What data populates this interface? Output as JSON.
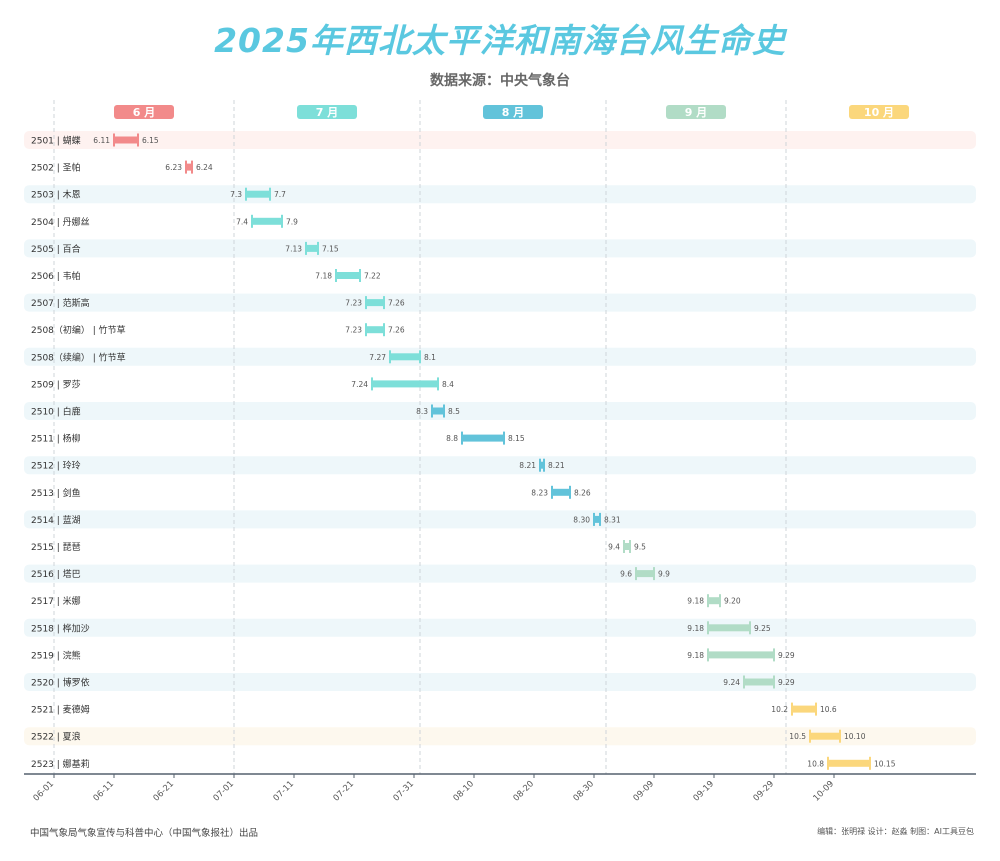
{
  "title": "2025年西北太平洋和南海台风生命史",
  "subtitle": "数据来源：中央气象台",
  "footer": {
    "left": "中国气象局气象宣传与科普中心（中国气象报社）出品",
    "right": "编辑：张明禄   设计：赵淼     制图：AI工具豆包"
  },
  "colors": {
    "6": "#f28a8a",
    "7": "#7ddfd9",
    "8": "#62c3da",
    "9": "#b1dcc6",
    "10": "#fbd77c",
    "axis": "#55606e",
    "grid": "#cfd4d9"
  },
  "chart_data": {
    "type": "timeline-range",
    "months": [
      {
        "label": "6 月",
        "color_key": "6"
      },
      {
        "label": "7 月",
        "color_key": "7"
      },
      {
        "label": "8 月",
        "color_key": "8"
      },
      {
        "label": "9 月",
        "color_key": "9"
      },
      {
        "label": "10 月",
        "color_key": "10"
      }
    ],
    "x_ticks": [
      "06-01",
      "06-11",
      "06-21",
      "07-01",
      "07-11",
      "07-21",
      "07-31",
      "08-10",
      "08-20",
      "08-30",
      "09-09",
      "09-19",
      "09-29",
      "10-09"
    ],
    "x_range": [
      "2025-06-01",
      "2025-10-31"
    ],
    "typhoons": [
      {
        "label": "2501 | 蝴蝶",
        "start_label": "6.11",
        "end_label": "6.15",
        "start": "2025-06-11",
        "end": "2025-06-15",
        "month": "6"
      },
      {
        "label": "2502 | 圣帕",
        "start_label": "6.23",
        "end_label": "6.24",
        "start": "2025-06-23",
        "end": "2025-06-24",
        "month": "6"
      },
      {
        "label": "2503 | 木恩",
        "start_label": "7.3",
        "end_label": "7.7",
        "start": "2025-07-03",
        "end": "2025-07-07",
        "month": "7"
      },
      {
        "label": "2504 | 丹娜丝",
        "start_label": "7.4",
        "end_label": "7.9",
        "start": "2025-07-04",
        "end": "2025-07-09",
        "month": "7"
      },
      {
        "label": "2505 | 百合",
        "start_label": "7.13",
        "end_label": "7.15",
        "start": "2025-07-13",
        "end": "2025-07-15",
        "month": "7"
      },
      {
        "label": "2506 | 韦帕",
        "start_label": "7.18",
        "end_label": "7.22",
        "start": "2025-07-18",
        "end": "2025-07-22",
        "month": "7"
      },
      {
        "label": "2507 | 范斯高",
        "start_label": "7.23",
        "end_label": "7.26",
        "start": "2025-07-23",
        "end": "2025-07-26",
        "month": "7"
      },
      {
        "label": "2508（初编） | 竹节草",
        "start_label": "7.23",
        "end_label": "7.26",
        "start": "2025-07-23",
        "end": "2025-07-26",
        "month": "7"
      },
      {
        "label": "2508（续编） | 竹节草",
        "start_label": "7.27",
        "end_label": "8.1",
        "start": "2025-07-27",
        "end": "2025-08-01",
        "month": "7"
      },
      {
        "label": "2509 | 罗莎",
        "start_label": "7.24",
        "end_label": "8.4",
        "start": "2025-07-24",
        "end": "2025-08-04",
        "month": "7"
      },
      {
        "label": "2510 | 白鹿",
        "start_label": "8.3",
        "end_label": "8.5",
        "start": "2025-08-03",
        "end": "2025-08-05",
        "month": "8"
      },
      {
        "label": "2511 | 杨柳",
        "start_label": "8.8",
        "end_label": "8.15",
        "start": "2025-08-08",
        "end": "2025-08-15",
        "month": "8"
      },
      {
        "label": "2512 | 玲玲",
        "start_label": "8.21",
        "end_label": "8.21",
        "start": "2025-08-21",
        "end": "2025-08-21",
        "month": "8"
      },
      {
        "label": "2513 | 剑鱼",
        "start_label": "8.23",
        "end_label": "8.26",
        "start": "2025-08-23",
        "end": "2025-08-26",
        "month": "8"
      },
      {
        "label": "2514 | 蓝湖",
        "start_label": "8.30",
        "end_label": "8.31",
        "start": "2025-08-30",
        "end": "2025-08-31",
        "month": "8"
      },
      {
        "label": "2515 | 琵琶",
        "start_label": "9.4",
        "end_label": "9.5",
        "start": "2025-09-04",
        "end": "2025-09-05",
        "month": "9"
      },
      {
        "label": "2516 | 塔巴",
        "start_label": "9.6",
        "end_label": "9.9",
        "start": "2025-09-06",
        "end": "2025-09-09",
        "month": "9"
      },
      {
        "label": "2517 | 米娜",
        "start_label": "9.18",
        "end_label": "9.20",
        "start": "2025-09-18",
        "end": "2025-09-20",
        "month": "9"
      },
      {
        "label": "2518 | 桦加沙",
        "start_label": "9.18",
        "end_label": "9.25",
        "start": "2025-09-18",
        "end": "2025-09-25",
        "month": "9"
      },
      {
        "label": "2519 | 浣熊",
        "start_label": "9.18",
        "end_label": "9.29",
        "start": "2025-09-18",
        "end": "2025-09-29",
        "month": "9"
      },
      {
        "label": "2520 | 博罗依",
        "start_label": "9.24",
        "end_label": "9.29",
        "start": "2025-09-24",
        "end": "2025-09-29",
        "month": "9"
      },
      {
        "label": "2521 | 麦德姆",
        "start_label": "10.2",
        "end_label": "10.6",
        "start": "2025-10-02",
        "end": "2025-10-06",
        "month": "10"
      },
      {
        "label": "2522 | 夏浪",
        "start_label": "10.5",
        "end_label": "10.10",
        "start": "2025-10-05",
        "end": "2025-10-10",
        "month": "10"
      },
      {
        "label": "2523 | 娜基莉",
        "start_label": "10.8",
        "end_label": "10.15",
        "start": "2025-10-08",
        "end": "2025-10-15",
        "month": "10"
      }
    ]
  }
}
